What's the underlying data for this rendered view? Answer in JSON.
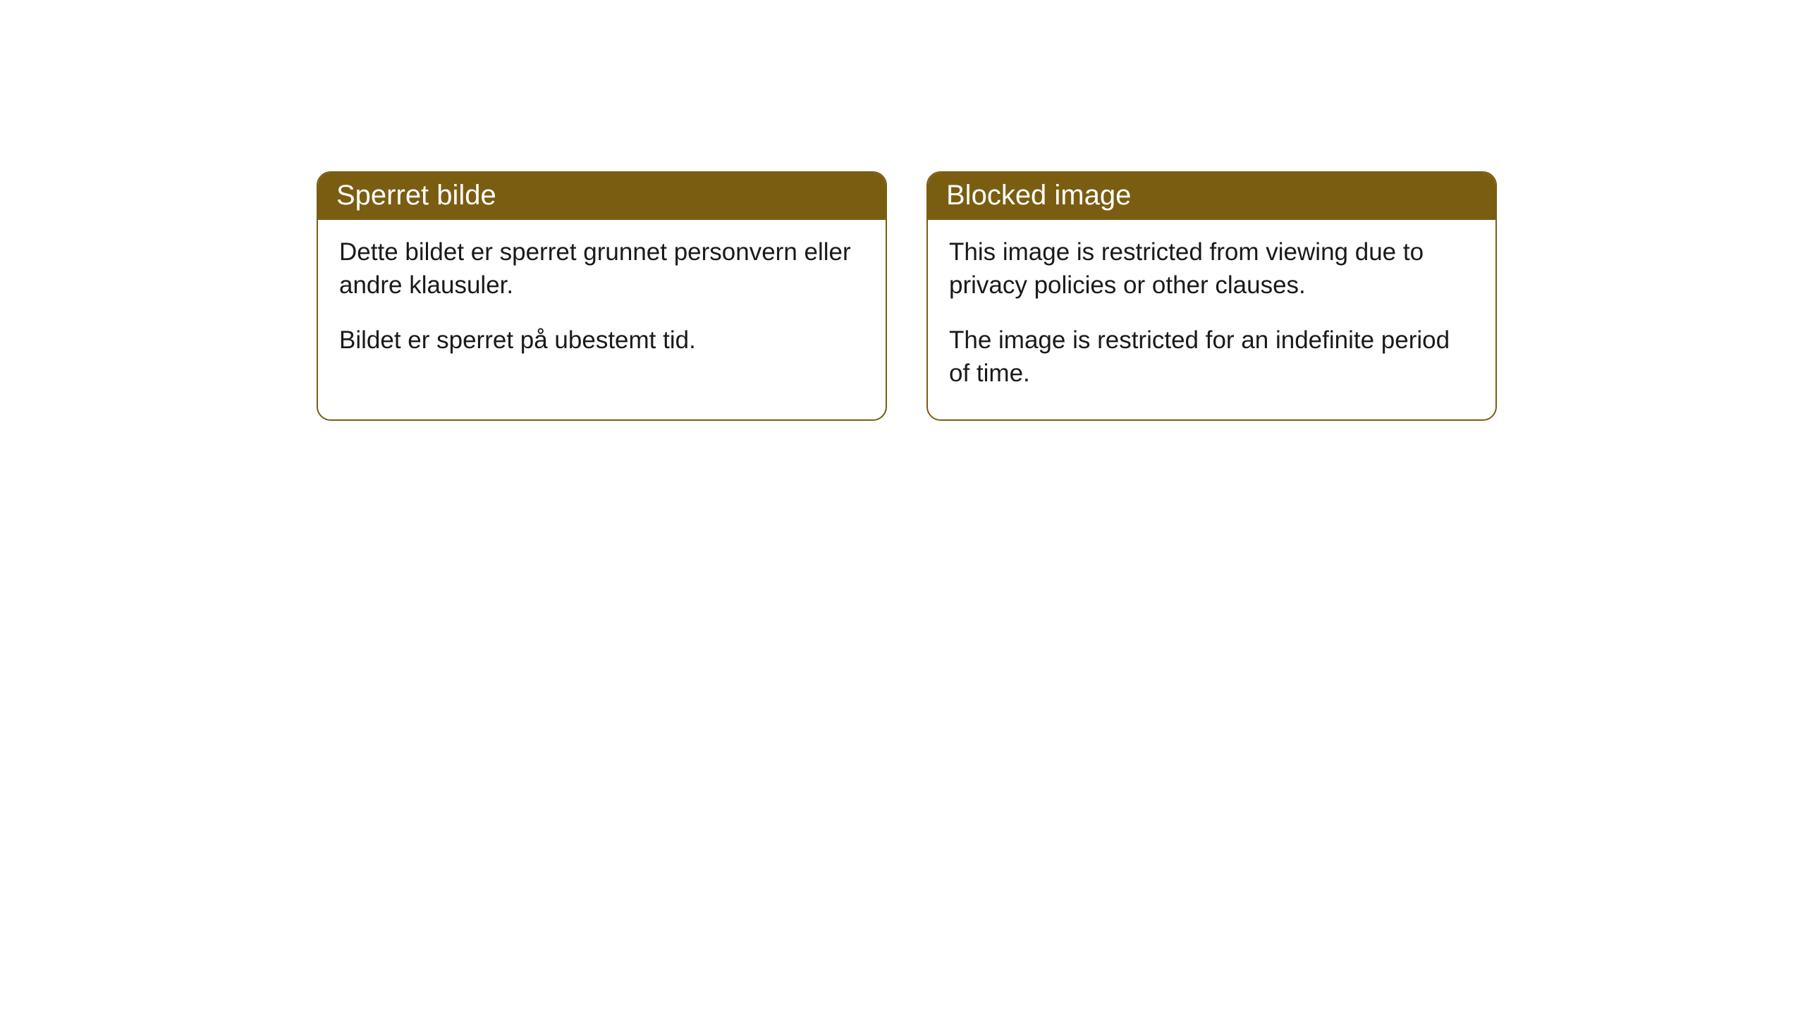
{
  "cards": [
    {
      "title": "Sperret bilde",
      "paragraph1": "Dette bildet er sperret grunnet personvern eller andre klausuler.",
      "paragraph2": "Bildet er sperret på ubestemt tid."
    },
    {
      "title": "Blocked image",
      "paragraph1": "This image is restricted from viewing due to privacy policies or other clauses.",
      "paragraph2": "The image is restricted for an indefinite period of time."
    }
  ],
  "style": {
    "header_background": "#7a5d11",
    "header_text_color": "#ffffff",
    "border_color": "#7a5d11",
    "body_background": "#ffffff",
    "body_text_color": "#1a1a1a",
    "border_radius": 20,
    "title_fontsize": 40,
    "body_fontsize": 35
  }
}
